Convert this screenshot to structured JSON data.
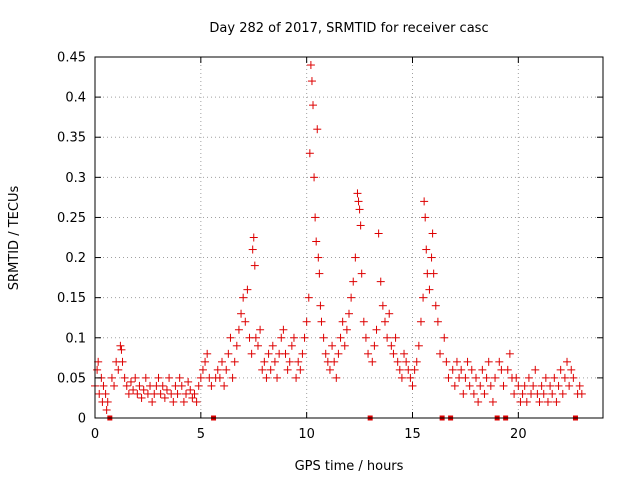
{
  "chart_data": {
    "type": "scatter",
    "title": "Day 282 of 2017, SRMTID for receiver casc",
    "xlabel": "GPS time / hours",
    "ylabel": "SRMTID / TECUs",
    "xlim": [
      0,
      24
    ],
    "ylim": [
      0,
      0.45
    ],
    "x_ticks": [
      0,
      5,
      10,
      15,
      20
    ],
    "x_tick_labels": [
      "0",
      "5",
      "10",
      "15",
      "20"
    ],
    "y_ticks": [
      0,
      0.05,
      0.1,
      0.15,
      0.2,
      0.25,
      0.3,
      0.35,
      0.4,
      0.45
    ],
    "y_tick_labels": [
      "0",
      "0.05",
      "0.1",
      "0.15",
      "0.2",
      "0.25",
      "0.3",
      "0.35",
      "0.4",
      "0.45"
    ],
    "grid": true,
    "marker": "+",
    "color": "#dd0000",
    "baseline_markers": {
      "y": 0,
      "x": [
        0.7,
        5.6,
        13.0,
        16.4,
        16.8,
        19.0,
        19.4,
        22.7
      ]
    },
    "series": [
      {
        "name": "SRMTID",
        "points": [
          [
            0.0,
            0.04
          ],
          [
            0.1,
            0.06
          ],
          [
            0.15,
            0.07
          ],
          [
            0.2,
            0.03
          ],
          [
            0.3,
            0.05
          ],
          [
            0.35,
            0.02
          ],
          [
            0.4,
            0.04
          ],
          [
            0.5,
            0.03
          ],
          [
            0.55,
            0.01
          ],
          [
            0.6,
            0.02
          ],
          [
            0.8,
            0.05
          ],
          [
            0.9,
            0.04
          ],
          [
            1.0,
            0.07
          ],
          [
            1.1,
            0.06
          ],
          [
            1.2,
            0.09
          ],
          [
            1.25,
            0.085
          ],
          [
            1.3,
            0.07
          ],
          [
            1.4,
            0.05
          ],
          [
            1.5,
            0.04
          ],
          [
            1.6,
            0.03
          ],
          [
            1.7,
            0.045
          ],
          [
            1.8,
            0.035
          ],
          [
            1.9,
            0.05
          ],
          [
            2.0,
            0.03
          ],
          [
            2.1,
            0.04
          ],
          [
            2.2,
            0.025
          ],
          [
            2.3,
            0.035
          ],
          [
            2.4,
            0.05
          ],
          [
            2.5,
            0.03
          ],
          [
            2.6,
            0.04
          ],
          [
            2.7,
            0.02
          ],
          [
            2.8,
            0.03
          ],
          [
            2.9,
            0.04
          ],
          [
            3.0,
            0.05
          ],
          [
            3.1,
            0.03
          ],
          [
            3.2,
            0.04
          ],
          [
            3.3,
            0.025
          ],
          [
            3.4,
            0.035
          ],
          [
            3.5,
            0.05
          ],
          [
            3.6,
            0.03
          ],
          [
            3.7,
            0.02
          ],
          [
            3.8,
            0.04
          ],
          [
            3.9,
            0.03
          ],
          [
            4.0,
            0.05
          ],
          [
            4.1,
            0.04
          ],
          [
            4.2,
            0.02
          ],
          [
            4.3,
            0.03
          ],
          [
            4.4,
            0.045
          ],
          [
            4.5,
            0.035
          ],
          [
            4.6,
            0.025
          ],
          [
            4.7,
            0.03
          ],
          [
            4.8,
            0.02
          ],
          [
            4.9,
            0.04
          ],
          [
            5.0,
            0.05
          ],
          [
            5.1,
            0.06
          ],
          [
            5.2,
            0.07
          ],
          [
            5.3,
            0.08
          ],
          [
            5.4,
            0.05
          ],
          [
            5.5,
            0.04
          ],
          [
            5.7,
            0.05
          ],
          [
            5.8,
            0.06
          ],
          [
            5.9,
            0.05
          ],
          [
            6.0,
            0.07
          ],
          [
            6.1,
            0.04
          ],
          [
            6.2,
            0.06
          ],
          [
            6.3,
            0.08
          ],
          [
            6.4,
            0.1
          ],
          [
            6.5,
            0.05
          ],
          [
            6.6,
            0.07
          ],
          [
            6.7,
            0.09
          ],
          [
            6.8,
            0.11
          ],
          [
            6.9,
            0.13
          ],
          [
            7.0,
            0.15
          ],
          [
            7.1,
            0.12
          ],
          [
            7.2,
            0.16
          ],
          [
            7.3,
            0.1
          ],
          [
            7.4,
            0.08
          ],
          [
            7.45,
            0.21
          ],
          [
            7.5,
            0.225
          ],
          [
            7.55,
            0.19
          ],
          [
            7.6,
            0.1
          ],
          [
            7.7,
            0.09
          ],
          [
            7.8,
            0.11
          ],
          [
            7.9,
            0.06
          ],
          [
            8.0,
            0.07
          ],
          [
            8.1,
            0.05
          ],
          [
            8.2,
            0.08
          ],
          [
            8.3,
            0.06
          ],
          [
            8.4,
            0.09
          ],
          [
            8.5,
            0.07
          ],
          [
            8.6,
            0.05
          ],
          [
            8.7,
            0.08
          ],
          [
            8.8,
            0.1
          ],
          [
            8.9,
            0.11
          ],
          [
            9.0,
            0.08
          ],
          [
            9.1,
            0.06
          ],
          [
            9.2,
            0.07
          ],
          [
            9.3,
            0.09
          ],
          [
            9.4,
            0.1
          ],
          [
            9.5,
            0.05
          ],
          [
            9.6,
            0.07
          ],
          [
            9.7,
            0.06
          ],
          [
            9.8,
            0.08
          ],
          [
            9.9,
            0.1
          ],
          [
            10.0,
            0.12
          ],
          [
            10.1,
            0.15
          ],
          [
            10.15,
            0.33
          ],
          [
            10.2,
            0.44
          ],
          [
            10.25,
            0.42
          ],
          [
            10.3,
            0.39
          ],
          [
            10.35,
            0.3
          ],
          [
            10.4,
            0.25
          ],
          [
            10.45,
            0.22
          ],
          [
            10.5,
            0.36
          ],
          [
            10.55,
            0.2
          ],
          [
            10.6,
            0.18
          ],
          [
            10.65,
            0.14
          ],
          [
            10.7,
            0.12
          ],
          [
            10.8,
            0.1
          ],
          [
            10.9,
            0.08
          ],
          [
            11.0,
            0.07
          ],
          [
            11.1,
            0.06
          ],
          [
            11.2,
            0.09
          ],
          [
            11.3,
            0.07
          ],
          [
            11.4,
            0.05
          ],
          [
            11.5,
            0.08
          ],
          [
            11.6,
            0.1
          ],
          [
            11.7,
            0.12
          ],
          [
            11.8,
            0.09
          ],
          [
            11.9,
            0.11
          ],
          [
            12.0,
            0.13
          ],
          [
            12.1,
            0.15
          ],
          [
            12.2,
            0.17
          ],
          [
            12.3,
            0.2
          ],
          [
            12.4,
            0.28
          ],
          [
            12.45,
            0.27
          ],
          [
            12.5,
            0.26
          ],
          [
            12.55,
            0.24
          ],
          [
            12.6,
            0.18
          ],
          [
            12.7,
            0.12
          ],
          [
            12.8,
            0.1
          ],
          [
            12.9,
            0.08
          ],
          [
            13.1,
            0.07
          ],
          [
            13.2,
            0.09
          ],
          [
            13.3,
            0.11
          ],
          [
            13.4,
            0.23
          ],
          [
            13.5,
            0.17
          ],
          [
            13.6,
            0.14
          ],
          [
            13.7,
            0.12
          ],
          [
            13.8,
            0.1
          ],
          [
            13.9,
            0.13
          ],
          [
            14.0,
            0.09
          ],
          [
            14.1,
            0.08
          ],
          [
            14.2,
            0.1
          ],
          [
            14.3,
            0.07
          ],
          [
            14.4,
            0.06
          ],
          [
            14.5,
            0.05
          ],
          [
            14.6,
            0.08
          ],
          [
            14.7,
            0.07
          ],
          [
            14.8,
            0.06
          ],
          [
            14.9,
            0.05
          ],
          [
            15.0,
            0.04
          ],
          [
            15.1,
            0.06
          ],
          [
            15.2,
            0.07
          ],
          [
            15.3,
            0.09
          ],
          [
            15.4,
            0.12
          ],
          [
            15.5,
            0.15
          ],
          [
            15.55,
            0.27
          ],
          [
            15.6,
            0.25
          ],
          [
            15.65,
            0.21
          ],
          [
            15.7,
            0.18
          ],
          [
            15.8,
            0.16
          ],
          [
            15.9,
            0.2
          ],
          [
            15.95,
            0.23
          ],
          [
            16.0,
            0.18
          ],
          [
            16.1,
            0.14
          ],
          [
            16.2,
            0.12
          ],
          [
            16.3,
            0.08
          ],
          [
            16.5,
            0.1
          ],
          [
            16.6,
            0.07
          ],
          [
            16.7,
            0.05
          ],
          [
            16.9,
            0.06
          ],
          [
            17.0,
            0.04
          ],
          [
            17.1,
            0.07
          ],
          [
            17.2,
            0.05
          ],
          [
            17.3,
            0.06
          ],
          [
            17.4,
            0.03
          ],
          [
            17.5,
            0.05
          ],
          [
            17.6,
            0.07
          ],
          [
            17.7,
            0.04
          ],
          [
            17.8,
            0.06
          ],
          [
            17.9,
            0.03
          ],
          [
            18.0,
            0.05
          ],
          [
            18.1,
            0.02
          ],
          [
            18.2,
            0.04
          ],
          [
            18.3,
            0.06
          ],
          [
            18.4,
            0.03
          ],
          [
            18.5,
            0.05
          ],
          [
            18.6,
            0.07
          ],
          [
            18.7,
            0.04
          ],
          [
            18.8,
            0.02
          ],
          [
            18.9,
            0.05
          ],
          [
            19.1,
            0.07
          ],
          [
            19.2,
            0.06
          ],
          [
            19.3,
            0.04
          ],
          [
            19.5,
            0.06
          ],
          [
            19.6,
            0.08
          ],
          [
            19.7,
            0.05
          ],
          [
            19.8,
            0.03
          ],
          [
            19.9,
            0.05
          ],
          [
            20.0,
            0.04
          ],
          [
            20.1,
            0.02
          ],
          [
            20.2,
            0.03
          ],
          [
            20.3,
            0.04
          ],
          [
            20.4,
            0.02
          ],
          [
            20.5,
            0.05
          ],
          [
            20.6,
            0.03
          ],
          [
            20.7,
            0.04
          ],
          [
            20.8,
            0.06
          ],
          [
            20.9,
            0.03
          ],
          [
            21.0,
            0.02
          ],
          [
            21.1,
            0.04
          ],
          [
            21.2,
            0.03
          ],
          [
            21.3,
            0.05
          ],
          [
            21.4,
            0.02
          ],
          [
            21.5,
            0.04
          ],
          [
            21.6,
            0.03
          ],
          [
            21.7,
            0.05
          ],
          [
            21.8,
            0.02
          ],
          [
            21.9,
            0.04
          ],
          [
            22.0,
            0.06
          ],
          [
            22.1,
            0.03
          ],
          [
            22.2,
            0.05
          ],
          [
            22.3,
            0.07
          ],
          [
            22.4,
            0.04
          ],
          [
            22.5,
            0.06
          ],
          [
            22.6,
            0.05
          ],
          [
            22.8,
            0.03
          ],
          [
            22.9,
            0.04
          ],
          [
            23.0,
            0.03
          ]
        ]
      }
    ]
  }
}
